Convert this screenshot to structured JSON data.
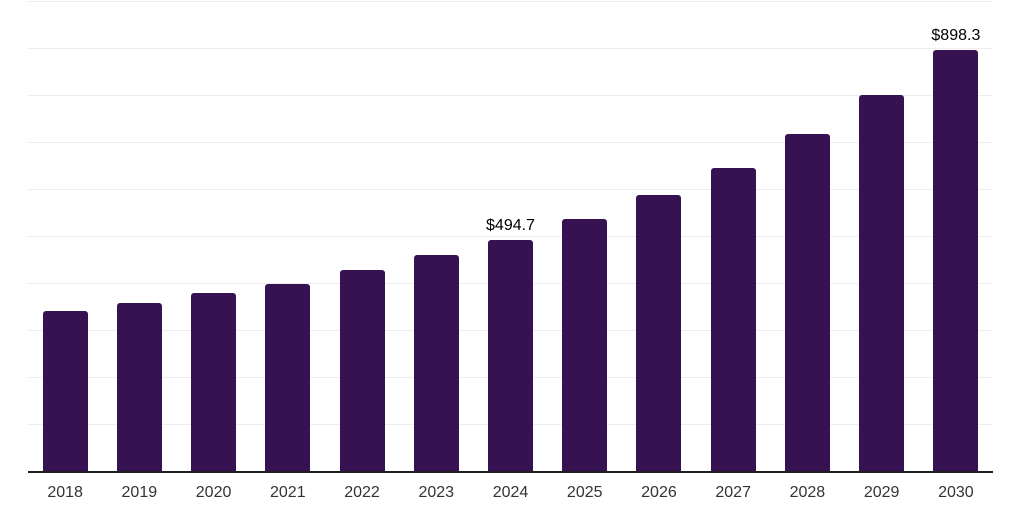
{
  "chart": {
    "title": "",
    "colors": {
      "bar": "#371253",
      "gridline": "#ededed",
      "axis_line": "#1f1f1f",
      "tick_label": "#333333",
      "data_label": "#000000",
      "background": "#ffffff"
    }
  },
  "chart_data": {
    "type": "bar",
    "title": "",
    "xlabel": "",
    "ylabel": "",
    "categories": [
      "2018",
      "2019",
      "2020",
      "2021",
      "2022",
      "2023",
      "2024",
      "2025",
      "2026",
      "2027",
      "2028",
      "2029",
      "2030"
    ],
    "values": [
      342,
      360,
      380,
      401,
      429,
      461,
      494.7,
      539,
      590,
      647,
      719,
      802,
      898.3
    ],
    "data_labels": {
      "2024": "$494.7",
      "2030": "$898.3"
    },
    "ylim": [
      0,
      1000
    ],
    "grid_interval": 100,
    "grid_visible": true,
    "y_tick_labels_visible": false,
    "legend_visible": false
  }
}
